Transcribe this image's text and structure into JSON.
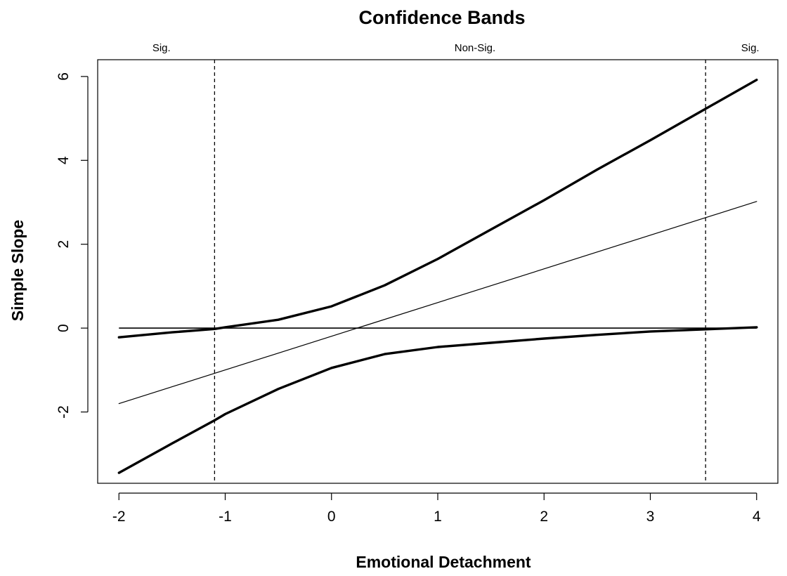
{
  "chart_data": {
    "type": "line",
    "title": "Confidence Bands",
    "xlabel": "Emotional Detachment",
    "ylabel": "Simple Slope",
    "xlim": [
      -2.2,
      4.2
    ],
    "ylim": [
      -3.7,
      6.4
    ],
    "x_ticks": [
      "-2",
      "-1",
      "0",
      "1",
      "2",
      "3",
      "4"
    ],
    "y_ticks": [
      "-2",
      "0",
      "2",
      "4",
      "6"
    ],
    "grid": false,
    "region_labels": [
      {
        "text": "Sig.",
        "x": -1.6
      },
      {
        "text": "Non-Sig.",
        "x": 1.35
      },
      {
        "text": "Sig.",
        "x": 3.94
      }
    ],
    "vertical_dashed_lines": [
      -1.1,
      3.52
    ],
    "horizontal_reference": 0,
    "series": [
      {
        "role": "upper_band",
        "x": [
          -2,
          -1.5,
          -1.1,
          -1,
          -0.5,
          0,
          0.5,
          1,
          1.5,
          2,
          2.5,
          3,
          3.5,
          4
        ],
        "values": [
          -0.22,
          -0.1,
          -0.02,
          0.02,
          0.2,
          0.52,
          1.02,
          1.65,
          2.35,
          3.05,
          3.78,
          4.48,
          5.2,
          5.92
        ]
      },
      {
        "role": "estimate",
        "x": [
          -2,
          4
        ],
        "values": [
          -1.8,
          3.02
        ]
      },
      {
        "role": "lower_band",
        "x": [
          -2,
          -1.5,
          -1.1,
          -1,
          -0.5,
          0,
          0.5,
          1,
          1.5,
          2,
          2.5,
          3,
          3.5,
          4
        ],
        "values": [
          -3.45,
          -2.75,
          -2.2,
          -2.05,
          -1.45,
          -0.95,
          -0.62,
          -0.45,
          -0.35,
          -0.25,
          -0.16,
          -0.08,
          -0.03,
          0.02
        ]
      }
    ]
  }
}
